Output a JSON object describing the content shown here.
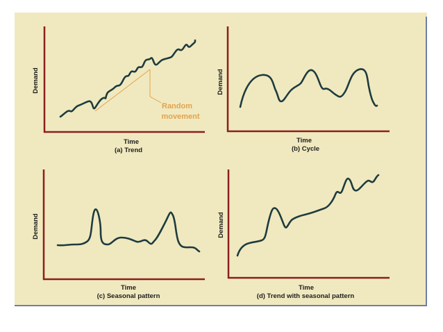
{
  "colors": {
    "background": "#f0e9bf",
    "axis": "#8b1e1e",
    "curve": "#1e3b3f",
    "annotation": "#e3a24c",
    "border": "#6a7fa6"
  },
  "panels": {
    "a": {
      "ylabel": "Demand",
      "xlabel": "Time",
      "caption": "(a) Trend",
      "annotation_line1": "Random",
      "annotation_line2": "movement"
    },
    "b": {
      "ylabel": "Demand",
      "xlabel": "Time",
      "caption": "(b) Cycle"
    },
    "c": {
      "ylabel": "Demand",
      "xlabel": "Time",
      "caption": "(c) Seasonal pattern"
    },
    "d": {
      "ylabel": "Demand",
      "xlabel": "Time",
      "caption": "(d) Trend with seasonal pattern"
    }
  }
}
